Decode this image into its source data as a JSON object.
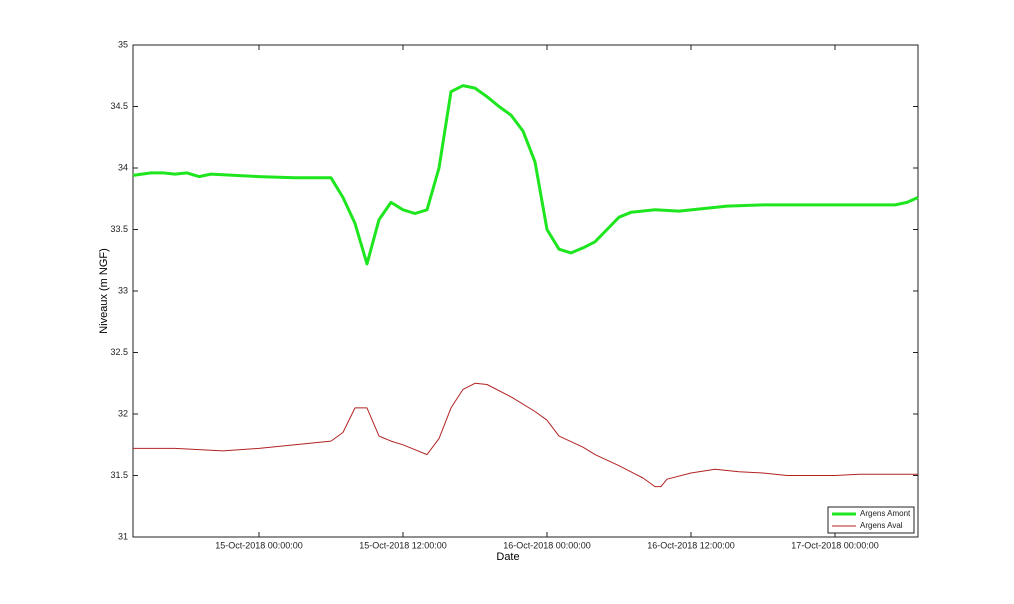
{
  "chart_data": {
    "type": "line",
    "xlabel": "Date",
    "ylabel": "Niveaux (m NGF)",
    "xlim": [
      "2018-10-14T13:30",
      "2018-10-17T06:55"
    ],
    "xticks": [
      {
        "value": "2018-10-15T00:00",
        "label": "15-Oct-2018 00:00:00"
      },
      {
        "value": "2018-10-15T12:00",
        "label": "15-Oct-2018 12:00:00"
      },
      {
        "value": "2018-10-16T00:00",
        "label": "16-Oct-2018 00:00:00"
      },
      {
        "value": "2018-10-16T12:00",
        "label": "16-Oct-2018 12:00:00"
      },
      {
        "value": "2018-10-17T00:00",
        "label": "17-Oct-2018 00:00:00"
      }
    ],
    "ylim": [
      31,
      35
    ],
    "yticks": [
      31,
      31.5,
      32,
      32.5,
      33,
      33.5,
      34,
      34.5,
      35
    ],
    "grid": false,
    "legend_position": "bottom-right",
    "series": [
      {
        "name": "Argens Amont",
        "color": "#1ee61e",
        "line_width": 3,
        "x": [
          "2018-10-14T13:30",
          "2018-10-14T15:00",
          "2018-10-14T16:00",
          "2018-10-14T17:00",
          "2018-10-14T18:00",
          "2018-10-14T19:00",
          "2018-10-14T20:00",
          "2018-10-14T22:00",
          "2018-10-15T00:00",
          "2018-10-15T03:00",
          "2018-10-15T06:00",
          "2018-10-15T07:00",
          "2018-10-15T08:00",
          "2018-10-15T09:00",
          "2018-10-15T10:00",
          "2018-10-15T11:00",
          "2018-10-15T12:00",
          "2018-10-15T13:00",
          "2018-10-15T14:00",
          "2018-10-15T15:00",
          "2018-10-15T16:00",
          "2018-10-15T17:00",
          "2018-10-15T18:00",
          "2018-10-15T19:00",
          "2018-10-15T20:00",
          "2018-10-15T21:00",
          "2018-10-15T22:00",
          "2018-10-15T23:00",
          "2018-10-16T00:00",
          "2018-10-16T01:00",
          "2018-10-16T02:00",
          "2018-10-16T03:00",
          "2018-10-16T04:00",
          "2018-10-16T05:00",
          "2018-10-16T06:00",
          "2018-10-16T07:00",
          "2018-10-16T09:00",
          "2018-10-16T11:00",
          "2018-10-16T13:00",
          "2018-10-16T15:00",
          "2018-10-16T18:00",
          "2018-10-16T22:00",
          "2018-10-17T02:00",
          "2018-10-17T05:00",
          "2018-10-17T06:00",
          "2018-10-17T06:55"
        ],
        "values": [
          33.94,
          33.96,
          33.96,
          33.95,
          33.96,
          33.93,
          33.95,
          33.94,
          33.93,
          33.92,
          33.92,
          33.76,
          33.55,
          33.22,
          33.58,
          33.72,
          33.66,
          33.63,
          33.66,
          34.0,
          34.62,
          34.67,
          34.65,
          34.58,
          34.5,
          34.43,
          34.3,
          34.05,
          33.5,
          33.34,
          33.31,
          33.35,
          33.4,
          33.5,
          33.6,
          33.64,
          33.66,
          33.65,
          33.67,
          33.69,
          33.7,
          33.7,
          33.7,
          33.7,
          33.72,
          33.76
        ]
      },
      {
        "name": "Argens Aval",
        "color": "#b22222",
        "line_width": 1,
        "x": [
          "2018-10-14T13:30",
          "2018-10-14T17:00",
          "2018-10-14T21:00",
          "2018-10-15T00:00",
          "2018-10-15T03:00",
          "2018-10-15T06:00",
          "2018-10-15T07:00",
          "2018-10-15T08:00",
          "2018-10-15T09:00",
          "2018-10-15T10:00",
          "2018-10-15T11:00",
          "2018-10-15T12:00",
          "2018-10-15T13:00",
          "2018-10-15T14:00",
          "2018-10-15T15:00",
          "2018-10-15T16:00",
          "2018-10-15T17:00",
          "2018-10-15T18:00",
          "2018-10-15T19:00",
          "2018-10-15T21:00",
          "2018-10-15T23:00",
          "2018-10-16T00:00",
          "2018-10-16T01:00",
          "2018-10-16T03:00",
          "2018-10-16T04:00",
          "2018-10-16T06:00",
          "2018-10-16T08:00",
          "2018-10-16T09:00",
          "2018-10-16T09:30",
          "2018-10-16T10:00",
          "2018-10-16T12:00",
          "2018-10-16T14:00",
          "2018-10-16T16:00",
          "2018-10-16T18:00",
          "2018-10-16T20:00",
          "2018-10-17T00:00",
          "2018-10-17T02:00",
          "2018-10-17T06:55"
        ],
        "values": [
          31.72,
          31.72,
          31.7,
          31.72,
          31.75,
          31.78,
          31.85,
          32.05,
          32.05,
          31.82,
          31.78,
          31.75,
          31.71,
          31.67,
          31.8,
          32.05,
          32.2,
          32.25,
          32.24,
          32.14,
          32.02,
          31.95,
          31.82,
          31.73,
          31.67,
          31.58,
          31.48,
          31.41,
          31.41,
          31.47,
          31.52,
          31.55,
          31.53,
          31.52,
          31.5,
          31.5,
          31.51,
          31.51
        ]
      }
    ]
  }
}
